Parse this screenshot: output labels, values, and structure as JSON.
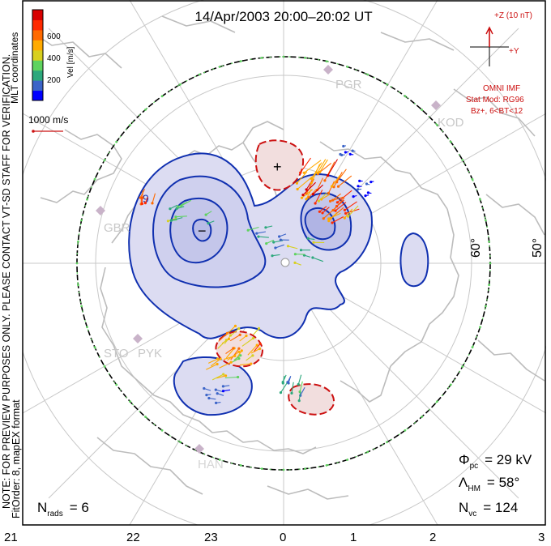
{
  "header": {
    "title": "14/Apr/2003 20:00–20:02 UT"
  },
  "velocity_scale": {
    "unit_label": "Vel [m/s]",
    "ticks": [
      "600",
      "400",
      "200"
    ],
    "colors": [
      "#0000ff",
      "#3b64c8",
      "#2ca87c",
      "#5fd35f",
      "#d8d020",
      "#ffaa00",
      "#ff6a00",
      "#ff2a00",
      "#d80000"
    ],
    "reference_vector": "1000 m/s"
  },
  "side_notes": {
    "coordinates": "MLT coordinates",
    "preview_note": "NOTE: FOR PREVIEW PURPOSES ONLY. PLEASE CONTACT VT-SD STAFF FOR VERIFICATION.",
    "fit_order": "FitOrder: 8, mapEX format"
  },
  "imf": {
    "z_label": "+Z (10 nT)",
    "y_label": "+Y",
    "source": "OMNI IMF",
    "model": "Stat Mod: RG96",
    "condition": "Bz+, 6<BT<12"
  },
  "radars": [
    "PGR",
    "KOD",
    "GBR",
    "STO",
    "PYK",
    "HAN"
  ],
  "latitude_labels": [
    "60°",
    "50°"
  ],
  "mlt_labels": [
    "21",
    "22",
    "23",
    "0",
    "1",
    "2",
    "3"
  ],
  "stats": {
    "phi_pc": {
      "symbol": "Φ",
      "sub": "pc",
      "value": "= 29 kV"
    },
    "lambda_hm": {
      "symbol": "Λ",
      "sub": "HM",
      "value": "= 58°"
    },
    "n_vc": {
      "symbol": "N",
      "sub": "vc",
      "value": "= 124"
    },
    "n_rads": {
      "symbol": "N",
      "sub": "rads",
      "value": "= 6"
    }
  },
  "potential_markers": {
    "max": "+",
    "min": "−"
  },
  "colors": {
    "negative_contour": "#1030b0",
    "positive_contour": "#cc1010",
    "negative_fill": "#dcdcf2",
    "positive_fill": "#f2dede",
    "map_lines": "#bdbdbd",
    "boundary": "#000000"
  }
}
